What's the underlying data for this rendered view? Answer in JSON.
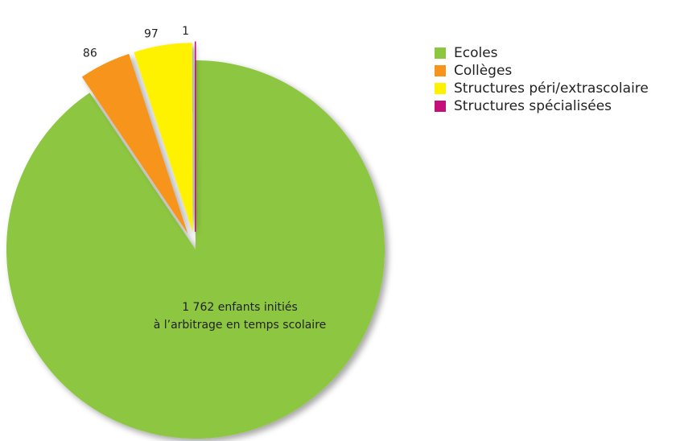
{
  "chart_data": {
    "type": "pie",
    "categories": [
      "Ecoles",
      "Collèges",
      "Structures péri/extrascolaire",
      "Structures spécialisées"
    ],
    "values": [
      1762,
      86,
      97,
      1
    ],
    "value_labels": [
      [
        "1 762 enfants initiés",
        "à l’arbitrage en temps scolaire"
      ],
      "86",
      "97",
      "1"
    ],
    "colors": [
      "#8dc63f",
      "#f7941d",
      "#fff200",
      "#c4117a"
    ],
    "legend": "right"
  }
}
